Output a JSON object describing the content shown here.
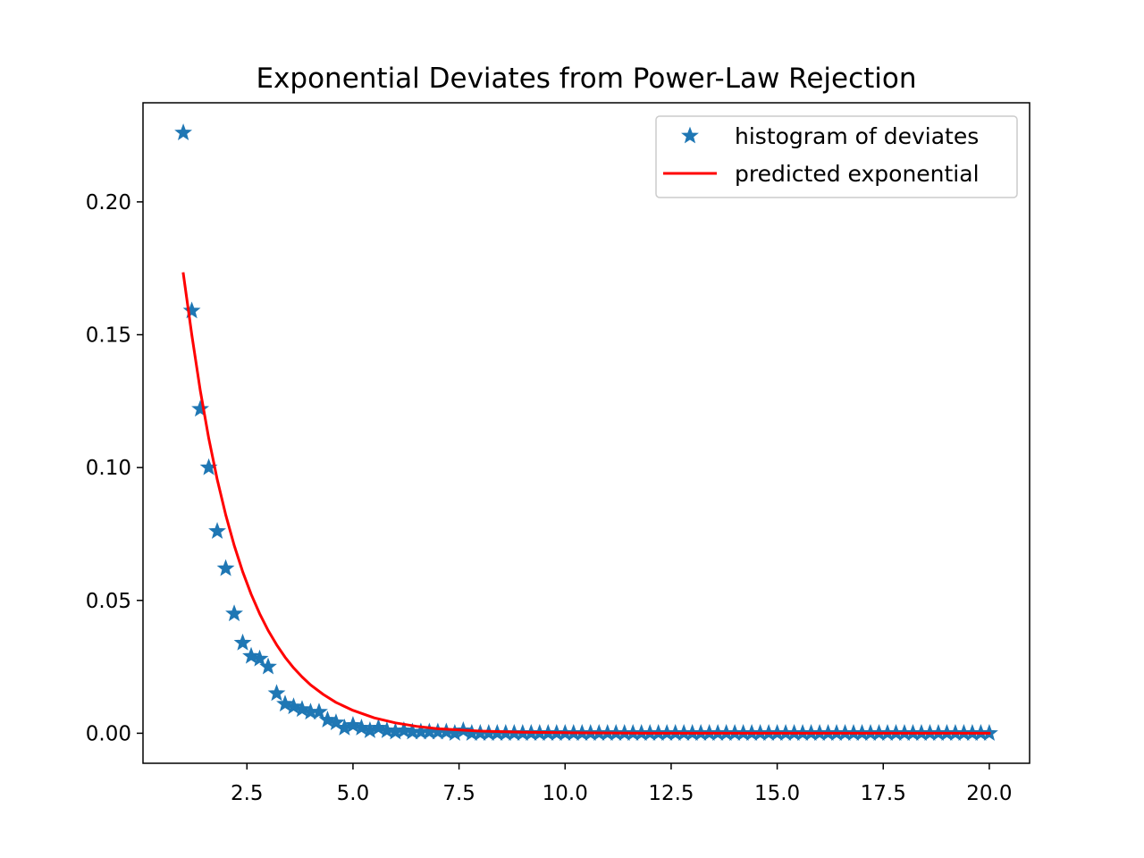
{
  "chart_data": {
    "type": "scatter",
    "title": "Exponential Deviates from Power-Law Rejection",
    "xlabel": "",
    "ylabel": "",
    "xlim": [
      0.05,
      20.95
    ],
    "ylim": [
      -0.0113,
      0.2373
    ],
    "xticks": [
      2.5,
      5.0,
      7.5,
      10.0,
      12.5,
      15.0,
      17.5,
      20.0
    ],
    "xtick_labels": [
      "2.5",
      "5.0",
      "7.5",
      "10.0",
      "12.5",
      "15.0",
      "17.5",
      "20.0"
    ],
    "yticks": [
      0.0,
      0.05,
      0.1,
      0.15,
      0.2
    ],
    "ytick_labels": [
      "0.00",
      "0.05",
      "0.10",
      "0.15",
      "0.20"
    ],
    "grid": false,
    "legend_position": "top-right",
    "series": [
      {
        "name": "histogram of deviates",
        "kind": "scatter",
        "marker": "star",
        "color": "#1f77b4",
        "x": [
          1.0,
          1.2,
          1.4,
          1.6,
          1.8,
          2.0,
          2.2,
          2.4,
          2.6,
          2.8,
          3.0,
          3.2,
          3.4,
          3.6,
          3.8,
          4.0,
          4.2,
          4.4,
          4.6,
          4.8,
          5.0,
          5.2,
          5.4,
          5.6,
          5.8,
          6.0,
          6.2,
          6.4,
          6.6,
          6.8,
          7.0,
          7.2,
          7.4,
          7.6,
          7.8,
          8.0,
          8.2,
          8.4,
          8.6,
          8.8,
          9.0,
          9.2,
          9.4,
          9.6,
          9.8,
          10.0,
          10.2,
          10.4,
          10.6,
          10.8,
          11.0,
          11.2,
          11.4,
          11.6,
          11.8,
          12.0,
          12.2,
          12.4,
          12.6,
          12.8,
          13.0,
          13.2,
          13.4,
          13.6,
          13.8,
          14.0,
          14.2,
          14.4,
          14.6,
          14.8,
          15.0,
          15.2,
          15.4,
          15.6,
          15.8,
          16.0,
          16.2,
          16.4,
          16.6,
          16.8,
          17.0,
          17.2,
          17.4,
          17.6,
          17.8,
          18.0,
          18.2,
          18.4,
          18.6,
          18.8,
          19.0,
          19.2,
          19.4,
          19.6,
          19.8,
          20.0
        ],
        "y": [
          0.226,
          0.159,
          0.122,
          0.1,
          0.076,
          0.062,
          0.045,
          0.034,
          0.029,
          0.028,
          0.025,
          0.015,
          0.011,
          0.01,
          0.009,
          0.008,
          0.008,
          0.005,
          0.004,
          0.002,
          0.003,
          0.002,
          0.001,
          0.002,
          0.001,
          0.0005,
          0.001,
          0.0005,
          0.0005,
          0.0005,
          0.0005,
          0.0005,
          0.0,
          0.001,
          0.0,
          0.0,
          0.0,
          0.0,
          0.0,
          0.0,
          0.0,
          0.0,
          0.0,
          0.0,
          0.0,
          0.0,
          0.0,
          0.0,
          0.0,
          0.0,
          0.0,
          0.0,
          0.0,
          0.0,
          0.0,
          0.0,
          0.0,
          0.0,
          0.0,
          0.0,
          0.0,
          0.0,
          0.0,
          0.0,
          0.0,
          0.0,
          0.0,
          0.0,
          0.0,
          0.0,
          0.0,
          0.0,
          0.0,
          0.0,
          0.0,
          0.0,
          0.0,
          0.0,
          0.0,
          0.0,
          0.0,
          0.0,
          0.0,
          0.0,
          0.0,
          0.0,
          0.0,
          0.0,
          0.0,
          0.0,
          0.0,
          0.0,
          0.0,
          0.0,
          0.0,
          0.0
        ]
      },
      {
        "name": "predicted exponential",
        "kind": "line",
        "color": "#ff0000",
        "x": [
          1.0,
          1.2,
          1.4,
          1.6,
          1.8,
          2.0,
          2.2,
          2.4,
          2.6,
          2.8,
          3.0,
          3.2,
          3.4,
          3.6,
          3.8,
          4.0,
          4.3,
          4.6,
          5.0,
          5.5,
          6.0,
          6.5,
          7.0,
          8.0,
          9.0,
          10.0,
          12.0,
          14.0,
          16.0,
          18.0,
          20.0
        ],
        "y": [
          0.173,
          0.15,
          0.129,
          0.111,
          0.0955,
          0.0822,
          0.0707,
          0.0608,
          0.0523,
          0.045,
          0.0387,
          0.0333,
          0.0286,
          0.0246,
          0.0212,
          0.0182,
          0.0146,
          0.0116,
          0.0086,
          0.0058,
          0.0039,
          0.0026,
          0.0017,
          0.0008,
          0.0004,
          0.0002,
          0.0,
          0.0,
          0.0,
          0.0,
          0.0
        ]
      }
    ]
  }
}
